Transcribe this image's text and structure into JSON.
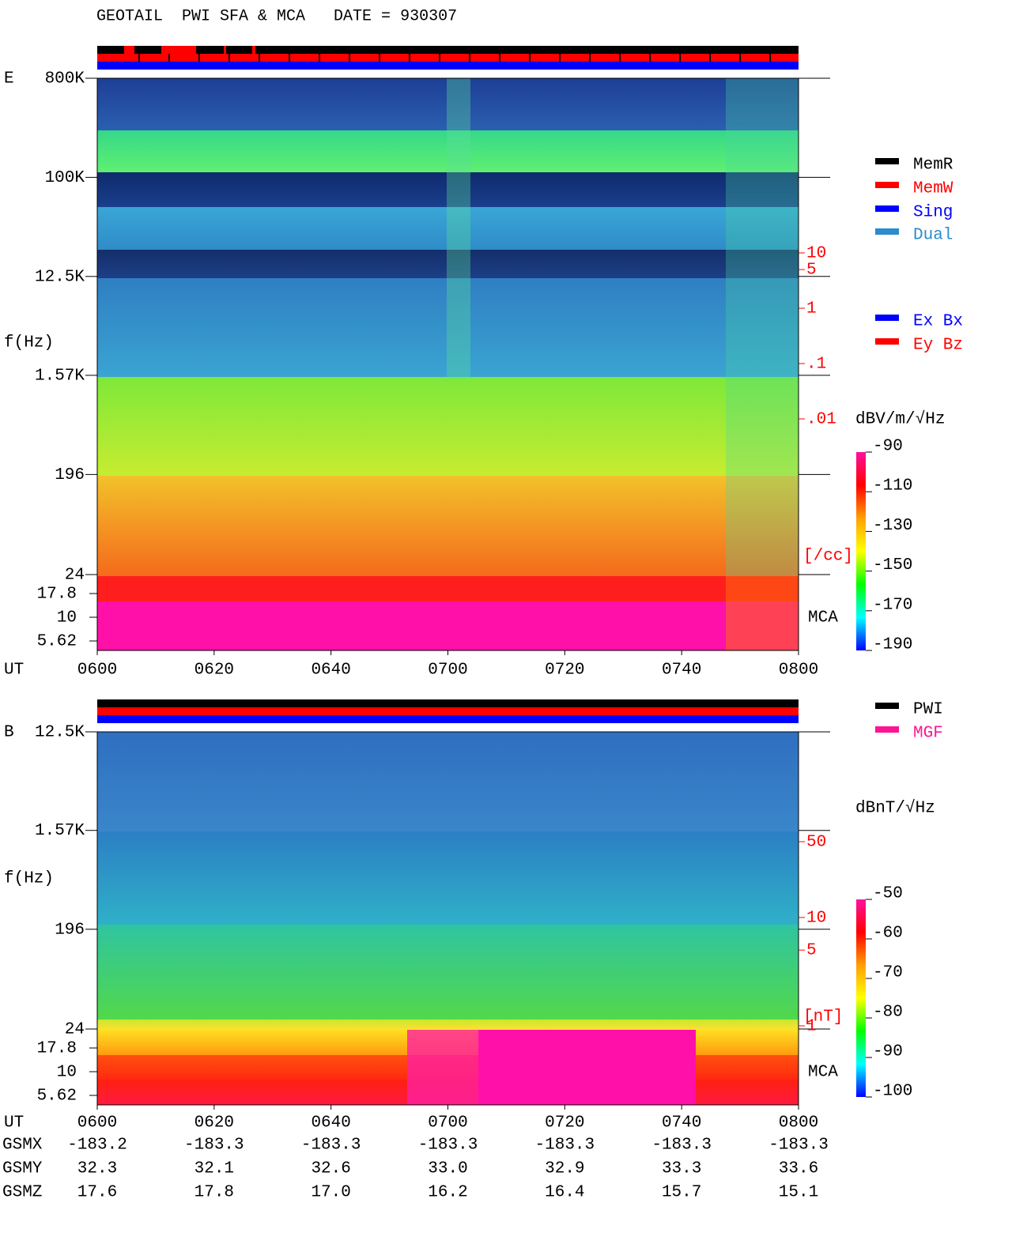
{
  "title": "GEOTAIL  PWI SFA & MCA   DATE = 930307",
  "chart_data": [
    {
      "type": "spectrogram",
      "panel_label": "E",
      "ylabel": "f(Hz)",
      "xlabel": "UT",
      "log_scale": true,
      "ylim": [
        24,
        800000
      ],
      "yticks": [
        {
          "value": 800000,
          "label": "800K"
        },
        {
          "value": 100000,
          "label": "100K"
        },
        {
          "value": 12500,
          "label": "12.5K"
        },
        {
          "value": 1570,
          "label": "1.57K"
        },
        196,
        24
      ],
      "mca_label": "MCA",
      "mca_ticks": [
        17.8,
        10,
        5.62
      ],
      "xlim": [
        360,
        480
      ],
      "xticks": [
        {
          "value": 360,
          "label": "0600"
        },
        {
          "value": 380,
          "label": "0620"
        },
        {
          "value": 400,
          "label": "0640"
        },
        {
          "value": 420,
          "label": "0700"
        },
        {
          "value": 440,
          "label": "0720"
        },
        {
          "value": 460,
          "label": "0740"
        },
        {
          "value": 480,
          "label": "0800"
        }
      ],
      "density_lim": [
        0.01,
        10
      ],
      "density_ticks": [
        10,
        5,
        1,
        {
          "value": 0.1,
          "label": ".1"
        },
        {
          "value": 0.01,
          "label": ".01"
        }
      ],
      "density_unit": "[/cc]",
      "legend": [
        {
          "name": "MemR",
          "color": "#000000"
        },
        {
          "name": "MemW",
          "color": "#ff0000"
        },
        {
          "name": "Sing",
          "color": "#0000ff"
        },
        {
          "name": "Dual",
          "color": "#2a8ccc"
        }
      ],
      "legend2": [
        {
          "name": "Ex Bx",
          "color": "#0000ff"
        },
        {
          "name": "Ey Bz",
          "color": "#ff0000"
        }
      ],
      "colorbar": {
        "label": "dBV/m/√Hz",
        "lim": [
          -190,
          -90
        ],
        "ticks": [
          -90,
          -110,
          -130,
          -150,
          -170,
          -190
        ],
        "colors": [
          "#ff10a0",
          "#ff0000",
          "#ffa000",
          "#ffff00",
          "#00ff00",
          "#00ffff",
          "#0000ff"
        ]
      }
    },
    {
      "type": "spectrogram",
      "panel_label": "B",
      "ylabel": "f(Hz)",
      "xlabel": "UT",
      "log_scale": true,
      "ylim": [
        24,
        12500
      ],
      "yticks": [
        {
          "value": 12500,
          "label": "12.5K"
        },
        {
          "value": 1570,
          "label": "1.57K"
        },
        196,
        24
      ],
      "mca_label": "MCA",
      "mca_ticks": [
        17.8,
        10,
        5.62
      ],
      "xlim": [
        360,
        480
      ],
      "xticks": [
        {
          "value": 360,
          "label": "0600"
        },
        {
          "value": 380,
          "label": "0620"
        },
        {
          "value": 400,
          "label": "0640"
        },
        {
          "value": 420,
          "label": "0700"
        },
        {
          "value": 440,
          "label": "0720"
        },
        {
          "value": 460,
          "label": "0740"
        },
        {
          "value": 480,
          "label": "0800"
        }
      ],
      "density_lim": [
        1,
        50
      ],
      "density_ticks": [
        50,
        10,
        5,
        1
      ],
      "density_unit": "[nT]",
      "legend": [
        {
          "name": "PWI",
          "color": "#000000"
        },
        {
          "name": "MGF",
          "color": "#ff1493"
        }
      ],
      "colorbar": {
        "label": "dBnT/√Hz",
        "lim": [
          -100,
          -50
        ],
        "ticks": [
          -50,
          -60,
          -70,
          -80,
          -90,
          -100
        ],
        "colors": [
          "#ff10a0",
          "#ff0000",
          "#ffa000",
          "#ffff00",
          "#00ff00",
          "#00ffff",
          "#0000ff"
        ]
      }
    }
  ],
  "orbit": {
    "rows": [
      {
        "name": "GSMX",
        "values": [
          "-183.2",
          "-183.3",
          "-183.3",
          "-183.3",
          "-183.3",
          "-183.3",
          "-183.3"
        ]
      },
      {
        "name": "GSMY",
        "values": [
          "32.3",
          "32.1",
          "32.6",
          "33.0",
          "32.9",
          "33.3",
          "33.6"
        ]
      },
      {
        "name": "GSMZ",
        "values": [
          "17.6",
          "17.8",
          "17.0",
          "16.2",
          "16.4",
          "15.7",
          "15.1"
        ]
      }
    ]
  }
}
